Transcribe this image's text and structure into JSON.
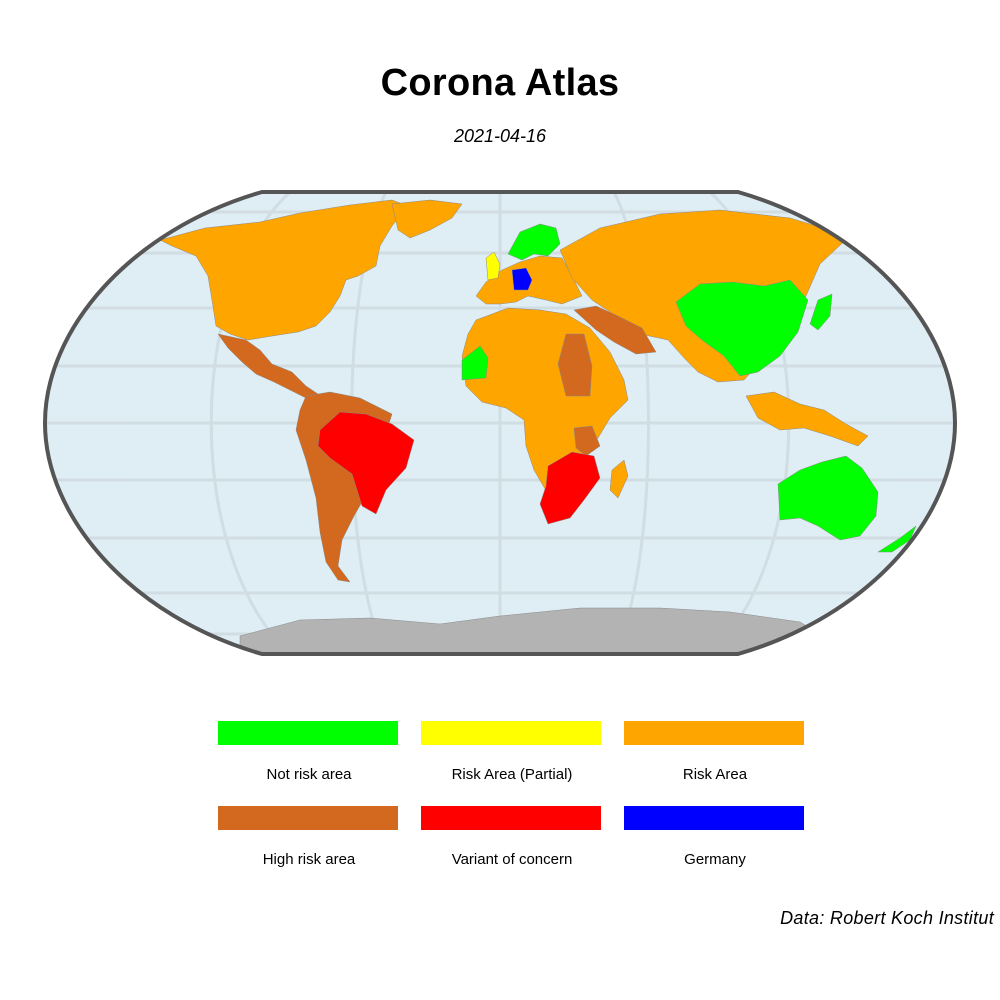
{
  "title": "Corona Atlas",
  "date": "2021-04-16",
  "caption": "Data: Robert Koch Institut",
  "colors": {
    "ocean": "#dfeef4",
    "graticule": "#cdd9df",
    "frame": "#555555",
    "antarctica": "#b3b3b3",
    "not_risk": "#00ff00",
    "risk_partial": "#ffff00",
    "risk": "#ffa500",
    "high_risk": "#d2691e",
    "variant": "#ff0000",
    "germany": "#0000ff"
  },
  "legend": [
    {
      "label": "Not risk area",
      "color": "#00ff00"
    },
    {
      "label": "Risk Area (Partial)",
      "color": "#ffff00"
    },
    {
      "label": "Risk Area",
      "color": "#ffa500"
    },
    {
      "label": "High risk area",
      "color": "#d2691e"
    },
    {
      "label": "Variant of concern",
      "color": "#ff0000"
    },
    {
      "label": "Germany",
      "color": "#0000ff"
    }
  ],
  "regions": [
    {
      "name": "North America",
      "category": "risk"
    },
    {
      "name": "Mexico and Central America",
      "category": "high_risk"
    },
    {
      "name": "Brazil",
      "category": "variant"
    },
    {
      "name": "South America",
      "category": "high_risk"
    },
    {
      "name": "Europe",
      "category": "risk"
    },
    {
      "name": "Germany",
      "category": "germany"
    },
    {
      "name": "United Kingdom",
      "category": "risk_partial"
    },
    {
      "name": "Africa",
      "category": "risk"
    },
    {
      "name": "South Africa",
      "category": "variant"
    },
    {
      "name": "Russia and Asia",
      "category": "risk"
    },
    {
      "name": "China",
      "category": "not_risk"
    },
    {
      "name": "Australia",
      "category": "not_risk"
    },
    {
      "name": "New Zealand",
      "category": "not_risk"
    },
    {
      "name": "Antarctica",
      "category": "none"
    }
  ]
}
